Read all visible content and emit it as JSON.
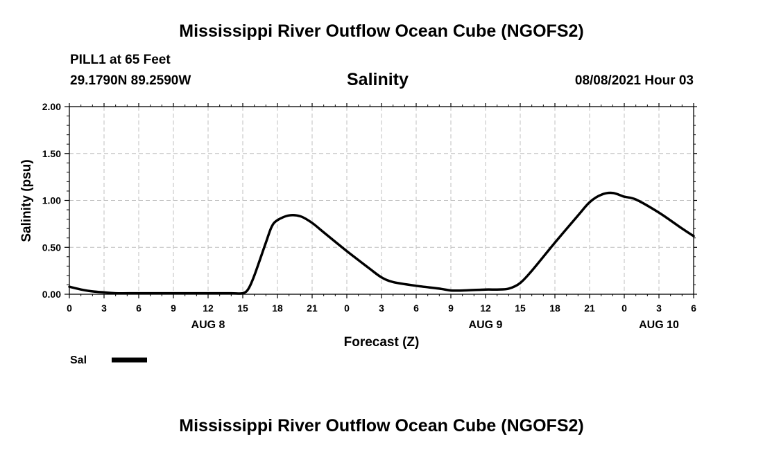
{
  "header": {
    "title": "Mississippi River Outflow Ocean Cube (NGOFS2)",
    "station": "PILL1 at 65 Feet",
    "coords": "29.1790N  89.2590W",
    "variable": "Salinity",
    "datetime": "08/08/2021 Hour 03"
  },
  "footer": {
    "title": "Mississippi River Outflow Ocean Cube (NGOFS2)"
  },
  "chart_data": {
    "type": "line",
    "title": "Salinity",
    "xlabel": "Forecast (Z)",
    "ylabel": "Salinity (psu)",
    "xlim": [
      0,
      54
    ],
    "ylim": [
      0,
      2
    ],
    "grid": true,
    "x_ticks": [
      {
        "x": 0,
        "label": "0"
      },
      {
        "x": 3,
        "label": "3"
      },
      {
        "x": 6,
        "label": "6"
      },
      {
        "x": 9,
        "label": "9"
      },
      {
        "x": 12,
        "label": "12"
      },
      {
        "x": 15,
        "label": "15"
      },
      {
        "x": 18,
        "label": "18"
      },
      {
        "x": 21,
        "label": "21"
      },
      {
        "x": 24,
        "label": "0"
      },
      {
        "x": 27,
        "label": "3"
      },
      {
        "x": 30,
        "label": "6"
      },
      {
        "x": 33,
        "label": "9"
      },
      {
        "x": 36,
        "label": "12"
      },
      {
        "x": 39,
        "label": "15"
      },
      {
        "x": 42,
        "label": "18"
      },
      {
        "x": 45,
        "label": "21"
      },
      {
        "x": 48,
        "label": "0"
      },
      {
        "x": 51,
        "label": "3"
      },
      {
        "x": 54,
        "label": "6"
      }
    ],
    "date_labels": [
      {
        "x": 12,
        "label": "AUG 8"
      },
      {
        "x": 36,
        "label": "AUG 9"
      },
      {
        "x": 51,
        "label": "AUG 10"
      }
    ],
    "y_ticks": [
      "0.00",
      "0.50",
      "1.00",
      "1.50",
      "2.00"
    ],
    "legend": {
      "position": "bottom-left",
      "label": "Sal"
    },
    "series": [
      {
        "name": "Sal",
        "x": [
          0,
          1,
          2,
          3,
          4,
          6,
          9,
          12,
          14,
          15,
          15.5,
          16,
          17,
          17.5,
          18,
          19,
          20,
          21,
          22,
          24,
          26,
          27,
          28,
          30,
          32,
          33,
          34,
          36,
          37,
          38,
          39,
          40,
          42,
          44,
          45,
          46,
          47,
          48,
          49,
          51,
          53,
          54
        ],
        "y": [
          0.08,
          0.05,
          0.03,
          0.02,
          0.01,
          0.01,
          0.01,
          0.01,
          0.01,
          0.01,
          0.06,
          0.2,
          0.55,
          0.72,
          0.79,
          0.84,
          0.83,
          0.76,
          0.66,
          0.46,
          0.27,
          0.18,
          0.13,
          0.09,
          0.06,
          0.04,
          0.04,
          0.05,
          0.05,
          0.06,
          0.12,
          0.25,
          0.55,
          0.84,
          0.98,
          1.06,
          1.08,
          1.04,
          1.01,
          0.87,
          0.7,
          0.62
        ]
      }
    ]
  }
}
